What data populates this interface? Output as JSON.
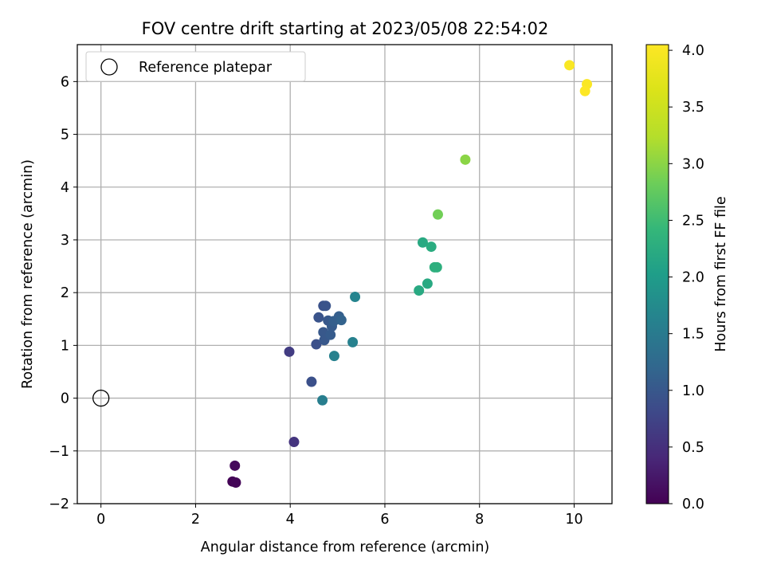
{
  "chart_data": {
    "type": "scatter",
    "title": "FOV centre drift starting at 2023/05/08 22:54:02",
    "xlabel": "Angular distance from reference (arcmin)",
    "ylabel": "Rotation from reference (arcmin)",
    "xlim": [
      -0.5,
      10.8
    ],
    "ylim": [
      -2,
      6.7
    ],
    "xticks": [
      0,
      2,
      4,
      6,
      8,
      10
    ],
    "yticks": [
      -2,
      -1,
      0,
      1,
      2,
      3,
      4,
      5,
      6
    ],
    "xtick_labels": [
      "0",
      "2",
      "4",
      "6",
      "8",
      "10"
    ],
    "ytick_labels": [
      "−2",
      "−1",
      "0",
      "1",
      "2",
      "3",
      "4",
      "5",
      "6"
    ],
    "grid": true,
    "legend": {
      "position": "upper-left",
      "label": "Reference platepar"
    },
    "reference_point": {
      "x": 0,
      "y": 0
    },
    "colorbar": {
      "label": "Hours from first FF file",
      "colormap": "viridis",
      "range": [
        0,
        4.05
      ],
      "ticks": [
        0.0,
        0.5,
        1.0,
        1.5,
        2.0,
        2.5,
        3.0,
        3.5,
        4.0
      ],
      "tick_labels": [
        "0.0",
        "0.5",
        "1.0",
        "1.5",
        "2.0",
        "2.5",
        "3.0",
        "3.5",
        "4.0"
      ]
    },
    "points": [
      {
        "x": 2.78,
        "y": -1.58,
        "hours": 0.02
      },
      {
        "x": 2.85,
        "y": -1.6,
        "hours": 0.05
      },
      {
        "x": 2.83,
        "y": -1.28,
        "hours": 0.08
      },
      {
        "x": 4.08,
        "y": -0.83,
        "hours": 0.55
      },
      {
        "x": 3.98,
        "y": 0.88,
        "hours": 0.65
      },
      {
        "x": 4.45,
        "y": 0.31,
        "hours": 0.9
      },
      {
        "x": 4.55,
        "y": 1.02,
        "hours": 0.9
      },
      {
        "x": 4.6,
        "y": 1.53,
        "hours": 0.95
      },
      {
        "x": 4.7,
        "y": 1.75,
        "hours": 0.92
      },
      {
        "x": 4.75,
        "y": 1.75,
        "hours": 0.95
      },
      {
        "x": 4.7,
        "y": 1.25,
        "hours": 1.0
      },
      {
        "x": 4.72,
        "y": 1.1,
        "hours": 1.0
      },
      {
        "x": 4.8,
        "y": 1.47,
        "hours": 1.0
      },
      {
        "x": 4.85,
        "y": 1.2,
        "hours": 1.05
      },
      {
        "x": 4.88,
        "y": 1.36,
        "hours": 1.05
      },
      {
        "x": 4.92,
        "y": 1.46,
        "hours": 1.1
      },
      {
        "x": 5.03,
        "y": 1.55,
        "hours": 1.1
      },
      {
        "x": 5.08,
        "y": 1.48,
        "hours": 1.15
      },
      {
        "x": 4.68,
        "y": -0.04,
        "hours": 1.55
      },
      {
        "x": 4.93,
        "y": 0.8,
        "hours": 1.6
      },
      {
        "x": 5.32,
        "y": 1.06,
        "hours": 1.6
      },
      {
        "x": 5.37,
        "y": 1.92,
        "hours": 1.65
      },
      {
        "x": 6.72,
        "y": 2.04,
        "hours": 2.2
      },
      {
        "x": 6.9,
        "y": 2.17,
        "hours": 2.2
      },
      {
        "x": 6.8,
        "y": 2.95,
        "hours": 2.2
      },
      {
        "x": 6.98,
        "y": 2.87,
        "hours": 2.25
      },
      {
        "x": 7.05,
        "y": 2.48,
        "hours": 2.3
      },
      {
        "x": 7.1,
        "y": 2.48,
        "hours": 2.3
      },
      {
        "x": 7.12,
        "y": 3.48,
        "hours": 2.85
      },
      {
        "x": 7.7,
        "y": 4.52,
        "hours": 3.0
      },
      {
        "x": 9.9,
        "y": 6.31,
        "hours": 4.0
      },
      {
        "x": 10.27,
        "y": 5.95,
        "hours": 4.02
      },
      {
        "x": 10.23,
        "y": 5.82,
        "hours": 4.05
      }
    ]
  }
}
